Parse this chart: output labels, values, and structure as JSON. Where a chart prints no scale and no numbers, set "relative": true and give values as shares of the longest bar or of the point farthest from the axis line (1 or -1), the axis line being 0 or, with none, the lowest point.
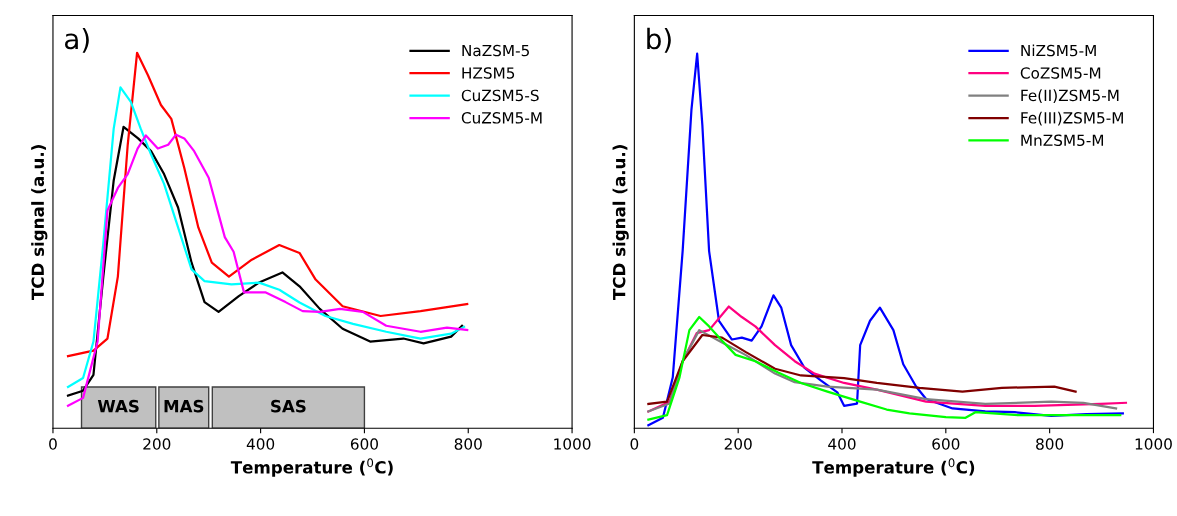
{
  "chart_data": [
    {
      "type": "line",
      "title": "a)",
      "xlabel": "Temperature ($^{0}$C)",
      "ylabel": "TCD signal (a.u.)",
      "relative": true,
      "xlim": [
        0,
        1000
      ],
      "xticks": [
        0,
        200,
        400,
        600,
        800,
        1000
      ],
      "tick_labels": "x",
      "legend": "top right",
      "grid": false,
      "series": [
        {
          "name": "NaZSM-5",
          "color": "#000000",
          "x": [
            29,
            58,
            78,
            97,
            117,
            136,
            164,
            189,
            214,
            241,
            267,
            292,
            319,
            358,
            397,
            442,
            475,
            514,
            558,
            611,
            675,
            714,
            767,
            788
          ],
          "values": [
            0.087,
            0.1,
            0.142,
            0.404,
            0.66,
            0.803,
            0.772,
            0.738,
            0.677,
            0.588,
            0.441,
            0.336,
            0.31,
            0.352,
            0.388,
            0.415,
            0.378,
            0.318,
            0.265,
            0.231,
            0.239,
            0.226,
            0.244,
            0.273
          ]
        },
        {
          "name": "HZSM5",
          "color": "#ff0000",
          "x": [
            29,
            78,
            105,
            125,
            144,
            162,
            183,
            208,
            228,
            253,
            280,
            306,
            339,
            383,
            436,
            475,
            506,
            558,
            631,
            708,
            798
          ],
          "values": [
            0.192,
            0.207,
            0.239,
            0.404,
            0.755,
            1.0,
            0.94,
            0.861,
            0.824,
            0.693,
            0.535,
            0.441,
            0.404,
            0.449,
            0.488,
            0.467,
            0.396,
            0.325,
            0.299,
            0.312,
            0.331
          ]
        },
        {
          "name": "CuZSM5-S",
          "color": "#00ffff",
          "x": [
            29,
            58,
            78,
            97,
            117,
            130,
            150,
            169,
            189,
            214,
            241,
            267,
            292,
            344,
            397,
            436,
            475,
            525,
            578,
            642,
            708,
            767,
            792
          ],
          "values": [
            0.11,
            0.134,
            0.231,
            0.493,
            0.798,
            0.908,
            0.869,
            0.798,
            0.729,
            0.651,
            0.535,
            0.423,
            0.392,
            0.383,
            0.388,
            0.369,
            0.335,
            0.299,
            0.278,
            0.257,
            0.239,
            0.252,
            0.27
          ]
        },
        {
          "name": "CuZSM5-M",
          "color": "#ff00ff",
          "x": [
            29,
            58,
            86,
            105,
            125,
            144,
            163,
            179,
            202,
            222,
            237,
            253,
            272,
            300,
            331,
            348,
            368,
            383,
            409,
            448,
            481,
            514,
            553,
            597,
            642,
            708,
            759,
            798
          ],
          "values": [
            0.06,
            0.081,
            0.231,
            0.58,
            0.64,
            0.677,
            0.745,
            0.78,
            0.745,
            0.755,
            0.782,
            0.772,
            0.738,
            0.667,
            0.509,
            0.47,
            0.362,
            0.362,
            0.362,
            0.336,
            0.312,
            0.31,
            0.318,
            0.31,
            0.273,
            0.257,
            0.268,
            0.262
          ]
        }
      ],
      "bands": [
        {
          "axis": "x",
          "from": 55,
          "to": 198,
          "label": "WAS",
          "color": "#c0c0c0"
        },
        {
          "axis": "x",
          "from": 204,
          "to": 300,
          "label": "MAS",
          "color": "#c0c0c0"
        },
        {
          "axis": "x",
          "from": 307,
          "to": 600,
          "label": "SAS",
          "color": "#c0c0c0"
        }
      ]
    },
    {
      "type": "line",
      "title": "b)",
      "xlabel": "Temperature ($^{0}$C)",
      "ylabel": "TCD signal (a.u.)",
      "relative": true,
      "xlim": [
        0,
        1000
      ],
      "xticks": [
        0,
        200,
        400,
        600,
        800,
        1000
      ],
      "tick_labels": "x",
      "legend": "top right",
      "grid": false,
      "series": [
        {
          "name": "NiZSM5-M",
          "color": "#0000ff",
          "x": [
            27,
            55,
            74,
            93,
            110,
            121,
            131,
            144,
            163,
            188,
            207,
            226,
            245,
            268,
            283,
            302,
            328,
            359,
            391,
            404,
            429,
            435,
            454,
            473,
            499,
            518,
            543,
            562,
            613,
            676,
            733,
            803,
            871,
            941
          ],
          "values": [
            0.008,
            0.028,
            0.136,
            0.473,
            0.851,
            1.0,
            0.809,
            0.473,
            0.287,
            0.237,
            0.242,
            0.234,
            0.272,
            0.355,
            0.322,
            0.222,
            0.161,
            0.128,
            0.096,
            0.06,
            0.066,
            0.222,
            0.287,
            0.322,
            0.262,
            0.171,
            0.111,
            0.078,
            0.053,
            0.045,
            0.043,
            0.033,
            0.038,
            0.04
          ]
        },
        {
          "name": "CoZSM5-M",
          "color": "#ff0080",
          "x": [
            27,
            68,
            93,
            120,
            144,
            182,
            207,
            233,
            271,
            309,
            347,
            404,
            467,
            562,
            676,
            771,
            898,
            947
          ],
          "values": [
            0.045,
            0.071,
            0.179,
            0.254,
            0.262,
            0.325,
            0.297,
            0.272,
            0.222,
            0.179,
            0.146,
            0.121,
            0.103,
            0.071,
            0.06,
            0.06,
            0.065,
            0.068
          ]
        },
        {
          "name": "Fe(II)ZSM5-M",
          "color": "#808080",
          "x": [
            27,
            68,
            93,
            125,
            169,
            214,
            271,
            309,
            372,
            467,
            562,
            676,
            803,
            865,
            928
          ],
          "values": [
            0.045,
            0.066,
            0.179,
            0.262,
            0.229,
            0.196,
            0.146,
            0.123,
            0.111,
            0.103,
            0.078,
            0.065,
            0.071,
            0.068,
            0.053
          ]
        },
        {
          "name": "Fe(III)ZSM5-M",
          "color": "#800000",
          "x": [
            27,
            63,
            93,
            131,
            169,
            214,
            271,
            321,
            404,
            467,
            549,
            632,
            708,
            809,
            850
          ],
          "values": [
            0.065,
            0.071,
            0.179,
            0.249,
            0.242,
            0.204,
            0.159,
            0.141,
            0.134,
            0.121,
            0.108,
            0.098,
            0.108,
            0.111,
            0.098
          ]
        },
        {
          "name": "MnZSM5-M",
          "color": "#00ff00",
          "x": [
            27,
            63,
            87,
            106,
            125,
            144,
            169,
            195,
            233,
            277,
            321,
            372,
            435,
            486,
            530,
            600,
            638,
            657,
            739,
            865,
            936
          ],
          "values": [
            0.023,
            0.035,
            0.136,
            0.262,
            0.297,
            0.272,
            0.234,
            0.196,
            0.179,
            0.149,
            0.121,
            0.098,
            0.071,
            0.05,
            0.04,
            0.03,
            0.028,
            0.043,
            0.035,
            0.035,
            0.035
          ]
        }
      ]
    }
  ]
}
